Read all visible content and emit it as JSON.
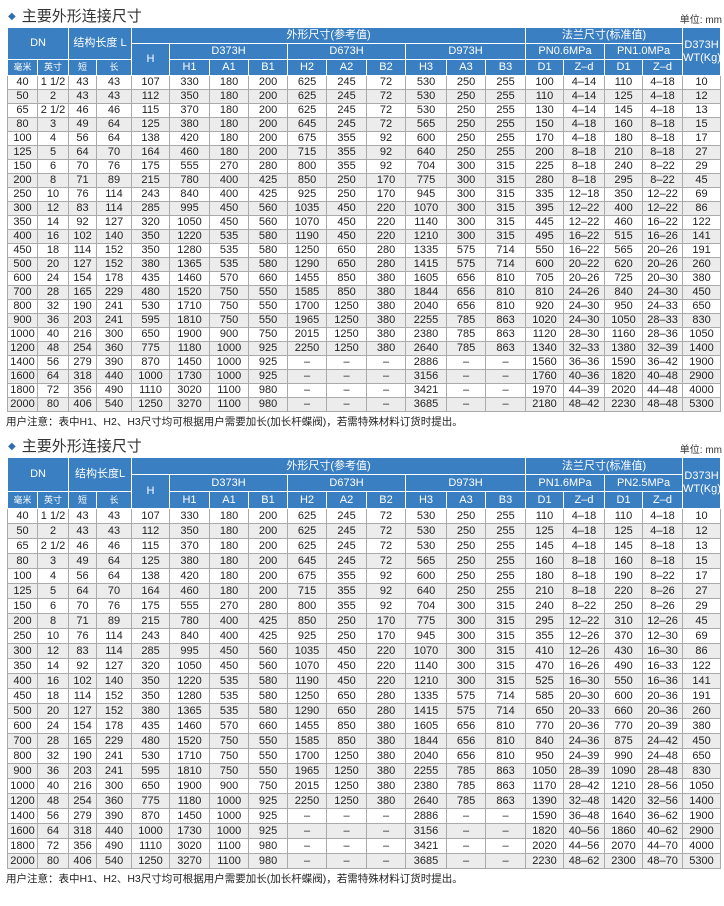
{
  "colors": {
    "header_bg": "#3a7fc1",
    "stripe": "#ececec"
  },
  "section_title": "主要外形连接尺寸",
  "unit": "单位: mm",
  "note": "用户注意：表中H1、H2、H3尺寸均可根据用户需要加长(加长杆蝶阀)，若需特殊材料订货时提出。",
  "headers": {
    "dn": "DN",
    "length_1": "结构长度 L",
    "length_2": "结构长度L",
    "outline": "外形尺寸(参考值)",
    "flange": "法兰尺寸(标准值)",
    "weight": "D373H WT(Kg)",
    "h": "H",
    "d373": "D373H",
    "d673": "D673H",
    "d973": "D973H",
    "mm": "毫米",
    "inch": "英寸",
    "short": "短",
    "long": "长",
    "h1": "H1",
    "a1": "A1",
    "b1": "B1",
    "h2": "H2",
    "a2": "A2",
    "b2": "B2",
    "h3": "H3",
    "a3": "A3",
    "b3": "B3",
    "d1": "D1",
    "zd": "Z–d"
  },
  "table1": {
    "pn_a": "PN0.6MPa",
    "pn_b": "PN1.0MPa",
    "rows": [
      [
        "40",
        "1 1/2",
        "43",
        "43",
        "107",
        "330",
        "180",
        "200",
        "625",
        "245",
        "72",
        "530",
        "250",
        "255",
        "100",
        "4–14",
        "110",
        "4–18",
        "10"
      ],
      [
        "50",
        "2",
        "43",
        "43",
        "112",
        "350",
        "180",
        "200",
        "625",
        "245",
        "72",
        "530",
        "250",
        "255",
        "110",
        "4–14",
        "125",
        "4–18",
        "12"
      ],
      [
        "65",
        "2 1/2",
        "46",
        "46",
        "115",
        "370",
        "180",
        "200",
        "625",
        "245",
        "72",
        "530",
        "250",
        "255",
        "130",
        "4–14",
        "145",
        "4–18",
        "13"
      ],
      [
        "80",
        "3",
        "49",
        "64",
        "125",
        "380",
        "180",
        "200",
        "645",
        "245",
        "72",
        "565",
        "250",
        "255",
        "150",
        "4–18",
        "160",
        "8–18",
        "15"
      ],
      [
        "100",
        "4",
        "56",
        "64",
        "138",
        "420",
        "180",
        "200",
        "675",
        "355",
        "92",
        "600",
        "250",
        "255",
        "170",
        "4–18",
        "180",
        "8–18",
        "17"
      ],
      [
        "125",
        "5",
        "64",
        "70",
        "164",
        "460",
        "180",
        "200",
        "715",
        "355",
        "92",
        "640",
        "250",
        "255",
        "200",
        "8–18",
        "210",
        "8–18",
        "27"
      ],
      [
        "150",
        "6",
        "70",
        "76",
        "175",
        "555",
        "270",
        "280",
        "800",
        "355",
        "92",
        "704",
        "300",
        "315",
        "225",
        "8–18",
        "240",
        "8–22",
        "29"
      ],
      [
        "200",
        "8",
        "71",
        "89",
        "215",
        "780",
        "400",
        "425",
        "850",
        "250",
        "170",
        "775",
        "300",
        "315",
        "280",
        "8–18",
        "295",
        "8–22",
        "45"
      ],
      [
        "250",
        "10",
        "76",
        "114",
        "243",
        "840",
        "400",
        "425",
        "925",
        "250",
        "170",
        "945",
        "300",
        "315",
        "335",
        "12–18",
        "350",
        "12–22",
        "69"
      ],
      [
        "300",
        "12",
        "83",
        "114",
        "285",
        "995",
        "450",
        "560",
        "1035",
        "450",
        "220",
        "1070",
        "300",
        "315",
        "395",
        "12–22",
        "400",
        "12–22",
        "86"
      ],
      [
        "350",
        "14",
        "92",
        "127",
        "320",
        "1050",
        "450",
        "560",
        "1070",
        "450",
        "220",
        "1140",
        "300",
        "315",
        "445",
        "12–22",
        "460",
        "16–22",
        "122"
      ],
      [
        "400",
        "16",
        "102",
        "140",
        "350",
        "1220",
        "535",
        "580",
        "1190",
        "450",
        "220",
        "1210",
        "300",
        "315",
        "495",
        "16–22",
        "515",
        "16–26",
        "141"
      ],
      [
        "450",
        "18",
        "114",
        "152",
        "350",
        "1280",
        "535",
        "580",
        "1250",
        "650",
        "280",
        "1335",
        "575",
        "714",
        "550",
        "16–22",
        "565",
        "20–26",
        "191"
      ],
      [
        "500",
        "20",
        "127",
        "152",
        "380",
        "1365",
        "535",
        "580",
        "1290",
        "650",
        "280",
        "1415",
        "575",
        "714",
        "600",
        "20–22",
        "620",
        "20–26",
        "260"
      ],
      [
        "600",
        "24",
        "154",
        "178",
        "435",
        "1460",
        "570",
        "660",
        "1455",
        "850",
        "380",
        "1605",
        "656",
        "810",
        "705",
        "20–26",
        "725",
        "20–30",
        "380"
      ],
      [
        "700",
        "28",
        "165",
        "229",
        "480",
        "1520",
        "750",
        "550",
        "1585",
        "850",
        "380",
        "1844",
        "656",
        "810",
        "810",
        "24–26",
        "840",
        "24–30",
        "450"
      ],
      [
        "800",
        "32",
        "190",
        "241",
        "530",
        "1710",
        "750",
        "550",
        "1700",
        "1250",
        "380",
        "2040",
        "656",
        "810",
        "920",
        "24–30",
        "950",
        "24–33",
        "650"
      ],
      [
        "900",
        "36",
        "203",
        "241",
        "595",
        "1810",
        "750",
        "550",
        "1965",
        "1250",
        "380",
        "2255",
        "785",
        "863",
        "1020",
        "24–30",
        "1050",
        "28–33",
        "830"
      ],
      [
        "1000",
        "40",
        "216",
        "300",
        "650",
        "1900",
        "900",
        "750",
        "2015",
        "1250",
        "380",
        "2380",
        "785",
        "863",
        "1120",
        "28–30",
        "1160",
        "28–36",
        "1050"
      ],
      [
        "1200",
        "48",
        "254",
        "360",
        "775",
        "1180",
        "1000",
        "925",
        "2250",
        "1250",
        "380",
        "2640",
        "785",
        "863",
        "1340",
        "32–33",
        "1380",
        "32–39",
        "1400"
      ],
      [
        "1400",
        "56",
        "279",
        "390",
        "870",
        "1450",
        "1000",
        "925",
        "–",
        "–",
        "–",
        "2886",
        "–",
        "–",
        "1560",
        "36–36",
        "1590",
        "36–42",
        "1900"
      ],
      [
        "1600",
        "64",
        "318",
        "440",
        "1000",
        "1730",
        "1000",
        "925",
        "–",
        "–",
        "–",
        "3156",
        "–",
        "–",
        "1760",
        "40–36",
        "1820",
        "40–48",
        "2900"
      ],
      [
        "1800",
        "72",
        "356",
        "490",
        "1110",
        "3020",
        "1100",
        "980",
        "–",
        "–",
        "–",
        "3421",
        "–",
        "–",
        "1970",
        "44–39",
        "2020",
        "44–48",
        "4000"
      ],
      [
        "2000",
        "80",
        "406",
        "540",
        "1250",
        "3270",
        "1100",
        "980",
        "–",
        "–",
        "–",
        "3685",
        "–",
        "–",
        "2180",
        "48–42",
        "2230",
        "48–48",
        "5300"
      ]
    ]
  },
  "table2": {
    "pn_a": "PN1.6MPa",
    "pn_b": "PN2.5MPa",
    "rows": [
      [
        "40",
        "1 1/2",
        "43",
        "43",
        "107",
        "330",
        "180",
        "200",
        "625",
        "245",
        "72",
        "530",
        "250",
        "255",
        "110",
        "4–18",
        "110",
        "4–18",
        "10"
      ],
      [
        "50",
        "2",
        "43",
        "43",
        "112",
        "350",
        "180",
        "200",
        "625",
        "245",
        "72",
        "530",
        "250",
        "255",
        "125",
        "4–18",
        "125",
        "4–18",
        "12"
      ],
      [
        "65",
        "2 1/2",
        "46",
        "46",
        "115",
        "370",
        "180",
        "200",
        "625",
        "245",
        "72",
        "530",
        "250",
        "255",
        "145",
        "4–18",
        "145",
        "8–18",
        "13"
      ],
      [
        "80",
        "3",
        "49",
        "64",
        "125",
        "380",
        "180",
        "200",
        "645",
        "245",
        "72",
        "565",
        "250",
        "255",
        "160",
        "8–18",
        "160",
        "8–18",
        "15"
      ],
      [
        "100",
        "4",
        "56",
        "64",
        "138",
        "420",
        "180",
        "200",
        "675",
        "355",
        "92",
        "600",
        "250",
        "255",
        "180",
        "8–18",
        "190",
        "8–22",
        "17"
      ],
      [
        "125",
        "5",
        "64",
        "70",
        "164",
        "460",
        "180",
        "200",
        "715",
        "355",
        "92",
        "640",
        "250",
        "255",
        "210",
        "8–18",
        "220",
        "8–26",
        "27"
      ],
      [
        "150",
        "6",
        "70",
        "76",
        "175",
        "555",
        "270",
        "280",
        "800",
        "355",
        "92",
        "704",
        "300",
        "315",
        "240",
        "8–22",
        "250",
        "8–26",
        "29"
      ],
      [
        "200",
        "8",
        "71",
        "89",
        "215",
        "780",
        "400",
        "425",
        "850",
        "250",
        "170",
        "775",
        "300",
        "315",
        "295",
        "12–22",
        "310",
        "12–26",
        "45"
      ],
      [
        "250",
        "10",
        "76",
        "114",
        "243",
        "840",
        "400",
        "425",
        "925",
        "250",
        "170",
        "945",
        "300",
        "315",
        "355",
        "12–26",
        "370",
        "12–30",
        "69"
      ],
      [
        "300",
        "12",
        "83",
        "114",
        "285",
        "995",
        "450",
        "560",
        "1035",
        "450",
        "220",
        "1070",
        "300",
        "315",
        "410",
        "12–26",
        "430",
        "16–30",
        "86"
      ],
      [
        "350",
        "14",
        "92",
        "127",
        "320",
        "1050",
        "450",
        "560",
        "1070",
        "450",
        "220",
        "1140",
        "300",
        "315",
        "470",
        "16–26",
        "490",
        "16–33",
        "122"
      ],
      [
        "400",
        "16",
        "102",
        "140",
        "350",
        "1220",
        "535",
        "580",
        "1190",
        "450",
        "220",
        "1210",
        "300",
        "315",
        "525",
        "16–30",
        "550",
        "16–36",
        "141"
      ],
      [
        "450",
        "18",
        "114",
        "152",
        "350",
        "1280",
        "535",
        "580",
        "1250",
        "650",
        "280",
        "1335",
        "575",
        "714",
        "585",
        "20–30",
        "600",
        "20–36",
        "191"
      ],
      [
        "500",
        "20",
        "127",
        "152",
        "380",
        "1365",
        "535",
        "580",
        "1290",
        "650",
        "280",
        "1415",
        "575",
        "714",
        "650",
        "20–33",
        "660",
        "20–36",
        "260"
      ],
      [
        "600",
        "24",
        "154",
        "178",
        "435",
        "1460",
        "570",
        "660",
        "1455",
        "850",
        "380",
        "1605",
        "656",
        "810",
        "770",
        "20–36",
        "770",
        "20–39",
        "380"
      ],
      [
        "700",
        "28",
        "165",
        "229",
        "480",
        "1520",
        "750",
        "550",
        "1585",
        "850",
        "380",
        "1844",
        "656",
        "810",
        "840",
        "24–36",
        "875",
        "24–42",
        "450"
      ],
      [
        "800",
        "32",
        "190",
        "241",
        "530",
        "1710",
        "750",
        "550",
        "1700",
        "1250",
        "380",
        "2040",
        "656",
        "810",
        "950",
        "24–39",
        "990",
        "24–48",
        "650"
      ],
      [
        "900",
        "36",
        "203",
        "241",
        "595",
        "1810",
        "750",
        "550",
        "1965",
        "1250",
        "380",
        "2255",
        "785",
        "863",
        "1050",
        "28–39",
        "1090",
        "28–48",
        "830"
      ],
      [
        "1000",
        "40",
        "216",
        "300",
        "650",
        "1900",
        "900",
        "750",
        "2015",
        "1250",
        "380",
        "2380",
        "785",
        "863",
        "1170",
        "28–42",
        "1210",
        "28–56",
        "1050"
      ],
      [
        "1200",
        "48",
        "254",
        "360",
        "775",
        "1180",
        "1000",
        "925",
        "2250",
        "1250",
        "380",
        "2640",
        "785",
        "863",
        "1390",
        "32–48",
        "1420",
        "32–56",
        "1400"
      ],
      [
        "1400",
        "56",
        "279",
        "390",
        "870",
        "1450",
        "1000",
        "925",
        "–",
        "–",
        "–",
        "2886",
        "–",
        "–",
        "1590",
        "36–48",
        "1640",
        "36–62",
        "1900"
      ],
      [
        "1600",
        "64",
        "318",
        "440",
        "1000",
        "1730",
        "1000",
        "925",
        "–",
        "–",
        "–",
        "3156",
        "–",
        "–",
        "1820",
        "40–56",
        "1860",
        "40–62",
        "2900"
      ],
      [
        "1800",
        "72",
        "356",
        "490",
        "1110",
        "3020",
        "1100",
        "980",
        "–",
        "–",
        "–",
        "3421",
        "–",
        "–",
        "2020",
        "44–56",
        "2070",
        "44–70",
        "4000"
      ],
      [
        "2000",
        "80",
        "406",
        "540",
        "1250",
        "3270",
        "1100",
        "980",
        "–",
        "–",
        "–",
        "3685",
        "–",
        "–",
        "2230",
        "48–62",
        "2300",
        "48–70",
        "5300"
      ]
    ]
  }
}
